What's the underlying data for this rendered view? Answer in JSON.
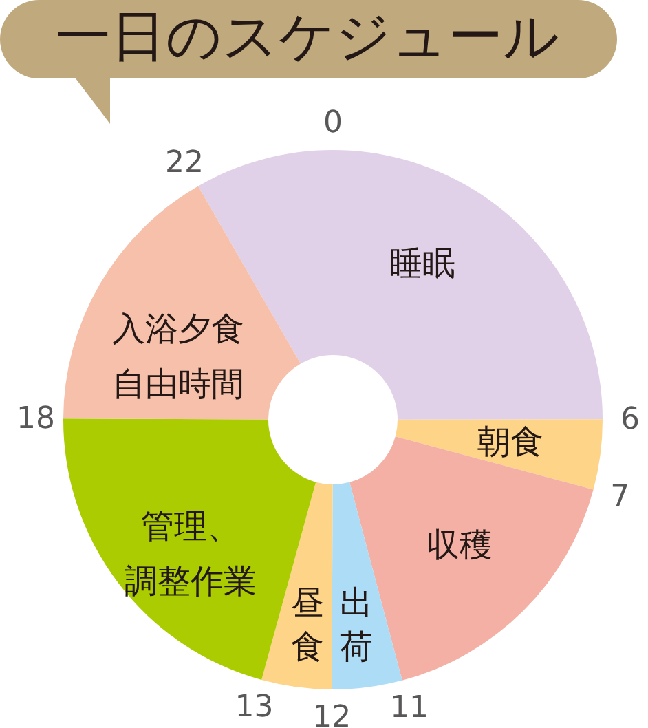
{
  "chart_data": {
    "type": "donut",
    "title": "一日のスケジュール",
    "categories": [
      "睡眠",
      "朝食",
      "収穫",
      "出荷",
      "昼食",
      "管理、調整作業",
      "入浴夕食自由時間"
    ],
    "values": [
      33.3,
      4.2,
      16.7,
      4.2,
      4.2,
      20.8,
      16.6
    ],
    "colors": [
      "#e0d0e8",
      "#fdd488",
      "#f4b0a4",
      "#acdcf6",
      "#fdd488",
      "#aacc00",
      "#f6c0aa"
    ],
    "annotations": [
      "0",
      "6",
      "7",
      "11",
      "12",
      "13",
      "18",
      "22"
    ]
  }
}
